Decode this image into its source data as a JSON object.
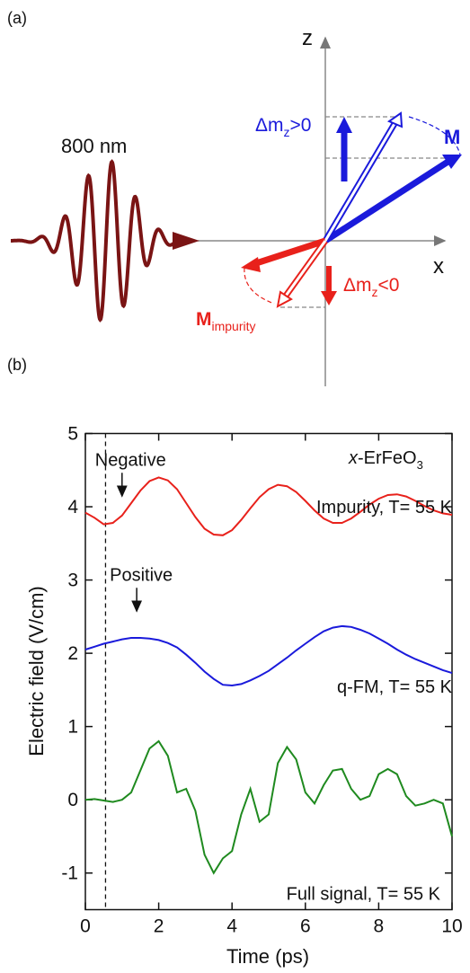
{
  "diagram": {
    "panel_a_label": "(a)",
    "panel_b_label": "(b)",
    "pulse_label": "800 nm",
    "z_axis": "z",
    "x_axis": "x",
    "delta_pos": {
      "main": "Δm",
      "sub": "z",
      "rest": ">0"
    },
    "m_label": "M",
    "delta_neg": {
      "main": "Δm",
      "sub": "z",
      "rest": "<0"
    },
    "m_impurity": {
      "main": "M",
      "sub": "impurity"
    }
  },
  "chart_data": {
    "type": "line",
    "xlabel": "Time (ps)",
    "ylabel": "Electric field (V/cm)",
    "sample_label": {
      "italic": "x",
      "text": "-ErFeO",
      "sub": "3"
    },
    "x": [
      0,
      0.25,
      0.5,
      0.75,
      1,
      1.25,
      1.5,
      1.75,
      2,
      2.25,
      2.5,
      2.75,
      3,
      3.25,
      3.5,
      3.75,
      4,
      4.25,
      4.5,
      4.75,
      5,
      5.25,
      5.5,
      5.75,
      6,
      6.25,
      6.5,
      6.75,
      7,
      7.25,
      7.5,
      7.75,
      8,
      8.25,
      8.5,
      8.75,
      9,
      9.25,
      9.5,
      9.75,
      10
    ],
    "series": [
      {
        "name": "Impurity, T= 55 K",
        "color": "#e8211b",
        "values": [
          3.92,
          3.85,
          3.76,
          3.78,
          3.88,
          4.05,
          4.22,
          4.35,
          4.4,
          4.36,
          4.24,
          4.05,
          3.86,
          3.7,
          3.62,
          3.61,
          3.68,
          3.82,
          3.98,
          4.13,
          4.24,
          4.3,
          4.28,
          4.2,
          4.08,
          3.95,
          3.84,
          3.78,
          3.78,
          3.84,
          3.93,
          4.03,
          4.11,
          4.16,
          4.17,
          4.14,
          4.08,
          4.01,
          3.95,
          3.91,
          3.89
        ]
      },
      {
        "name": "q-FM, T= 55 K",
        "color": "#1a1adb",
        "values": [
          2.05,
          2.09,
          2.13,
          2.16,
          2.19,
          2.21,
          2.21,
          2.2,
          2.18,
          2.14,
          2.08,
          1.98,
          1.87,
          1.75,
          1.65,
          1.57,
          1.56,
          1.58,
          1.63,
          1.69,
          1.76,
          1.85,
          1.94,
          2.04,
          2.13,
          2.22,
          2.3,
          2.35,
          2.37,
          2.36,
          2.32,
          2.27,
          2.2,
          2.13,
          2.05,
          1.98,
          1.92,
          1.87,
          1.82,
          1.77,
          1.73
        ]
      },
      {
        "name": "Full signal, T= 55 K",
        "color": "#1f8a1f",
        "values": [
          0,
          0.01,
          -0.01,
          -0.03,
          0,
          0.1,
          0.4,
          0.7,
          0.8,
          0.6,
          0.1,
          0.15,
          -0.15,
          -0.75,
          -1,
          -0.8,
          -0.7,
          -0.2,
          0.15,
          -0.3,
          -0.2,
          0.5,
          0.72,
          0.55,
          0.1,
          -0.05,
          0.2,
          0.4,
          0.42,
          0.15,
          0,
          0.05,
          0.35,
          0.42,
          0.35,
          0.05,
          -0.08,
          -0.05,
          0,
          -0.05,
          -0.5
        ]
      }
    ],
    "vline": 0.55,
    "annotations": [
      {
        "text": "Negative",
        "x": 1.0,
        "y": 4.12
      },
      {
        "text": "Positive",
        "x": 1.4,
        "y": 2.55
      }
    ],
    "xlim": [
      0,
      10
    ],
    "ylim": [
      -1.5,
      5
    ],
    "xticks": [
      0,
      2,
      4,
      6,
      8,
      10
    ],
    "yticks": [
      -1,
      0,
      1,
      2,
      3,
      4,
      5
    ]
  }
}
